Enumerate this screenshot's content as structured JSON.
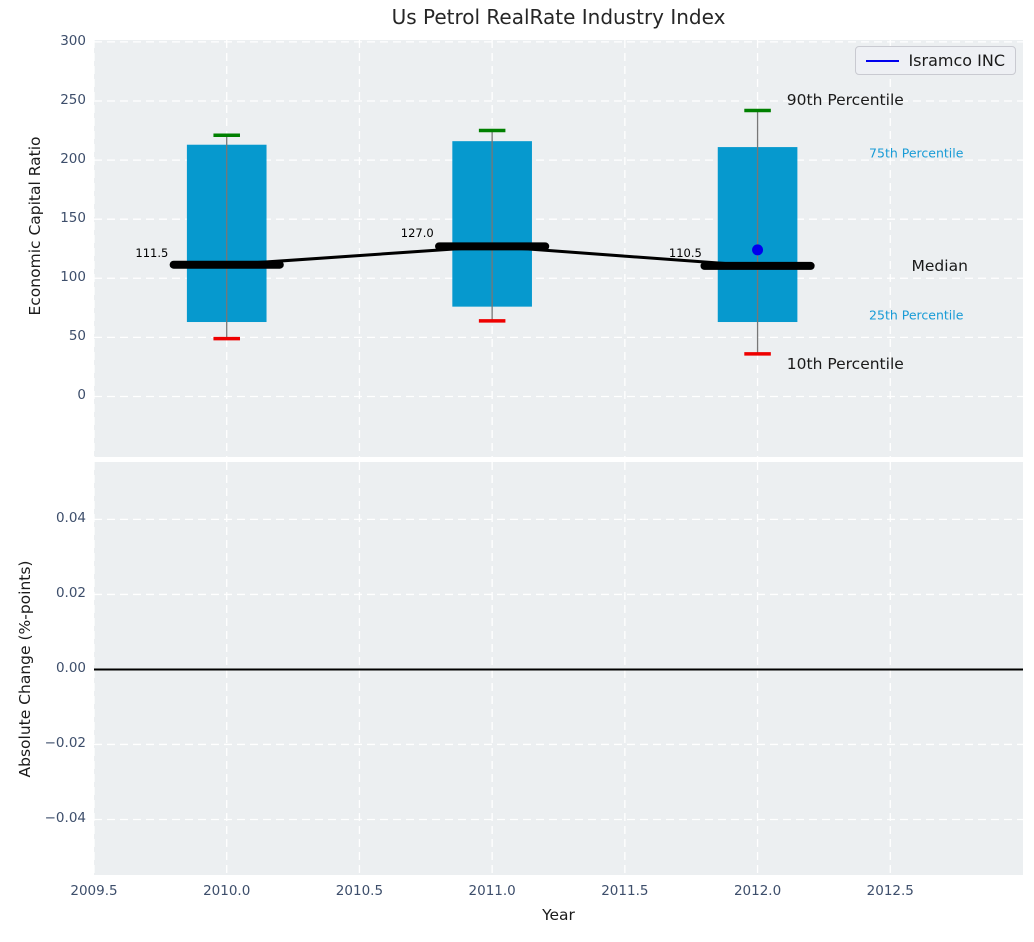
{
  "chart_data": {
    "type": "bar",
    "title": "Us Petrol RealRate Industry Index",
    "xlabel": "Year",
    "legend": {
      "label": "Isramco INC",
      "position": "upper right"
    },
    "xlim": [
      2009.5,
      2013.0
    ],
    "xticks": [
      2009.5,
      2010.0,
      2010.5,
      2011.0,
      2011.5,
      2012.0,
      2012.5
    ],
    "xtick_labels": [
      "2009.5",
      "2010.0",
      "2010.5",
      "2011.0",
      "2011.5",
      "2012.0",
      "2012.5"
    ],
    "grid": "white dashed on light gray",
    "top": {
      "ylabel": "Economic Capital Ratio",
      "ylim": [
        -51.2,
        301.6
      ],
      "yticks": [
        0,
        50,
        100,
        150,
        200,
        250,
        300
      ],
      "ytick_labels": [
        "0",
        "50",
        "100",
        "150",
        "200",
        "250",
        "300"
      ],
      "boxes": [
        {
          "year": 2010,
          "p10": 49,
          "p25": 63,
          "median": 111.5,
          "p75": 213,
          "p90": 221
        },
        {
          "year": 2011,
          "p10": 64,
          "p25": 76,
          "median": 127.0,
          "p75": 216,
          "p90": 225
        },
        {
          "year": 2012,
          "p10": 36,
          "p25": 63,
          "median": 110.5,
          "p75": 211,
          "p90": 242
        }
      ],
      "median_line": [
        {
          "year": 2010,
          "value": 111.5
        },
        {
          "year": 2011,
          "value": 127.0
        },
        {
          "year": 2012,
          "value": 110.5
        }
      ],
      "median_labels": [
        {
          "text": "111.5",
          "year": 2009.78,
          "value": 121
        },
        {
          "text": "127.0",
          "year": 2010.78,
          "value": 138
        },
        {
          "text": "110.5",
          "year": 2011.79,
          "value": 121
        }
      ],
      "company_points": [
        {
          "year": 2012,
          "value": 124
        }
      ],
      "side_labels": [
        {
          "text": "90th Percentile",
          "year": 2012.11,
          "value": 251,
          "style": "large"
        },
        {
          "text": "75th Percentile",
          "year": 2012.42,
          "value": 206,
          "style": "small-accent"
        },
        {
          "text": "Median",
          "year": 2012.58,
          "value": 110,
          "style": "large"
        },
        {
          "text": "25th Percentile",
          "year": 2012.42,
          "value": 69,
          "style": "small-accent"
        },
        {
          "text": "10th Percentile",
          "year": 2012.11,
          "value": 27.5,
          "style": "large"
        }
      ]
    },
    "bottom": {
      "ylabel": "Absolute Change (%-points)",
      "ylim": [
        -0.0548,
        0.0553
      ],
      "yticks": [
        0.04,
        0.02,
        0.0,
        -0.02,
        -0.04
      ],
      "ytick_labels": [
        "0.04",
        "0.02",
        "0.00",
        "−0.02",
        "−0.04"
      ],
      "zero_line": 0.0
    },
    "colors": {
      "bar_fill": "#0699ce",
      "p90_cap": "#008000",
      "p10_cap": "#ee0000",
      "median": "#000000",
      "whisker": "#777777",
      "company": "#0000ee",
      "accent_label": "#189bd6",
      "tick_text": "#3d4e6b",
      "axes_background": "#eceff1",
      "grid": "#ffffff"
    }
  }
}
